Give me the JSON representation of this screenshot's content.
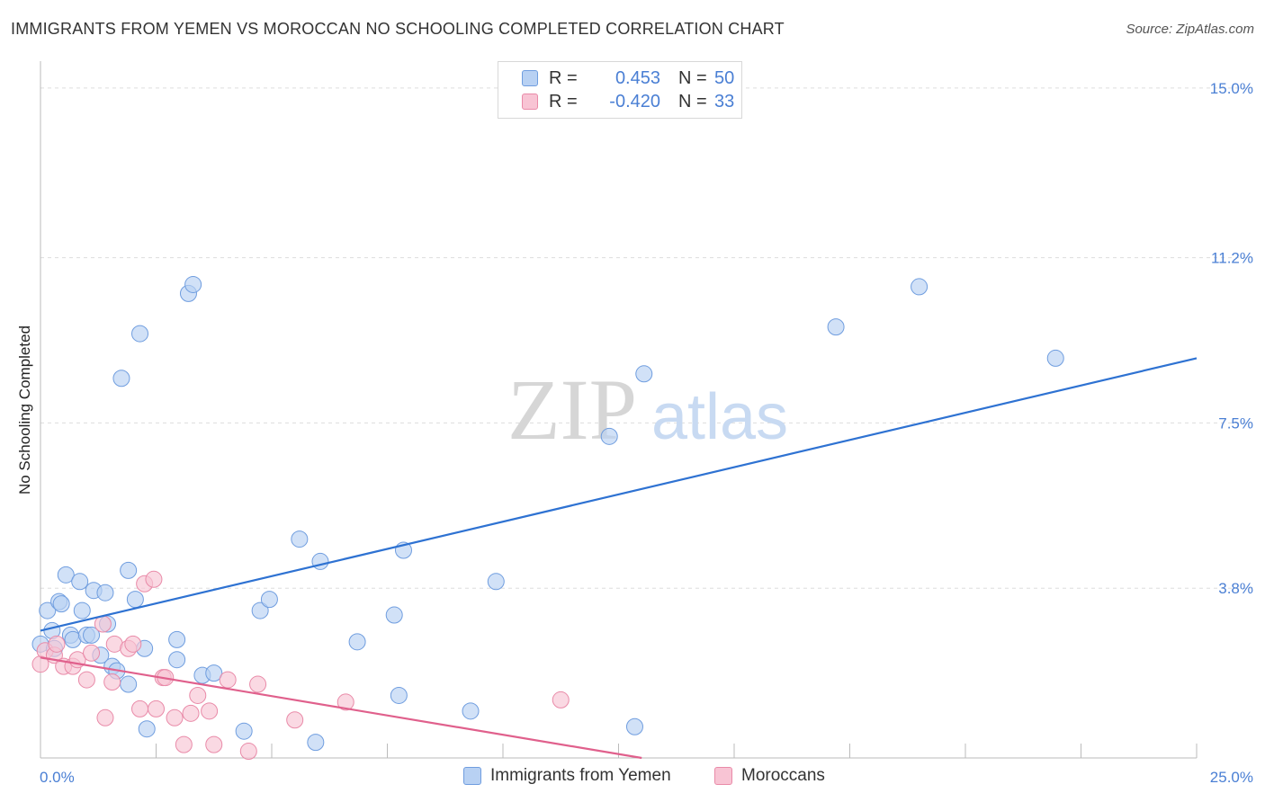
{
  "header": {
    "title": "IMMIGRANTS FROM YEMEN VS MOROCCAN NO SCHOOLING COMPLETED CORRELATION CHART",
    "source": "Source: ZipAtlas.com"
  },
  "watermark": {
    "zip": "ZIP",
    "atlas": "atlas"
  },
  "legend": {
    "rows": [
      {
        "r_label": "R =",
        "r_value": "0.453",
        "n_label": "N =",
        "n_value": "50"
      },
      {
        "r_label": "R =",
        "r_value": "-0.420",
        "n_label": "N =",
        "n_value": "33"
      }
    ]
  },
  "colors": {
    "blue_fill": "#b8d1f3",
    "blue_stroke": "#6f9ddf",
    "blue_line": "#2e72d2",
    "pink_fill": "#f8c4d4",
    "pink_stroke": "#e98aa8",
    "pink_line": "#e0608c",
    "tick_text": "#4a7fd4",
    "grid": "#dddddd"
  },
  "chart_data": {
    "type": "scatter",
    "title": "IMMIGRANTS FROM YEMEN VS MOROCCAN NO SCHOOLING COMPLETED CORRELATION CHART",
    "xlabel": "",
    "ylabel": "No Schooling Completed",
    "xlim": [
      0,
      25
    ],
    "ylim": [
      0,
      15.4
    ],
    "x_tick_labels": [
      "0.0%",
      "25.0%"
    ],
    "y_ticks": [
      3.8,
      7.5,
      11.2,
      15.0
    ],
    "y_tick_labels": [
      "3.8%",
      "7.5%",
      "11.2%",
      "15.0%"
    ],
    "grid": true,
    "legend_position": "bottom",
    "series": [
      {
        "name": "Immigrants from Yemen",
        "color": "#6f9ddf",
        "points": [
          [
            0.0,
            2.55
          ],
          [
            0.15,
            3.3
          ],
          [
            0.25,
            2.85
          ],
          [
            0.3,
            2.45
          ],
          [
            0.4,
            3.5
          ],
          [
            0.45,
            3.45
          ],
          [
            0.55,
            4.1
          ],
          [
            0.65,
            2.75
          ],
          [
            0.7,
            2.65
          ],
          [
            0.85,
            3.95
          ],
          [
            0.9,
            3.3
          ],
          [
            1.0,
            2.75
          ],
          [
            1.1,
            2.75
          ],
          [
            1.15,
            3.75
          ],
          [
            1.3,
            2.3
          ],
          [
            1.4,
            3.7
          ],
          [
            1.45,
            3.0
          ],
          [
            1.55,
            2.05
          ],
          [
            1.65,
            1.95
          ],
          [
            1.75,
            8.5
          ],
          [
            1.9,
            1.65
          ],
          [
            1.9,
            4.2
          ],
          [
            2.05,
            3.55
          ],
          [
            2.15,
            9.5
          ],
          [
            2.25,
            2.45
          ],
          [
            2.3,
            0.65
          ],
          [
            2.95,
            2.65
          ],
          [
            2.95,
            2.2
          ],
          [
            3.2,
            10.4
          ],
          [
            3.3,
            10.6
          ],
          [
            3.5,
            1.85
          ],
          [
            3.75,
            1.9
          ],
          [
            4.4,
            0.6
          ],
          [
            4.75,
            3.3
          ],
          [
            4.95,
            3.55
          ],
          [
            5.6,
            4.9
          ],
          [
            5.95,
            0.35
          ],
          [
            6.05,
            4.4
          ],
          [
            6.85,
            2.6
          ],
          [
            7.65,
            3.2
          ],
          [
            7.75,
            1.4
          ],
          [
            7.85,
            4.65
          ],
          [
            9.3,
            1.05
          ],
          [
            9.85,
            3.95
          ],
          [
            12.3,
            7.2
          ],
          [
            12.85,
            0.7
          ],
          [
            13.05,
            8.6
          ],
          [
            17.2,
            9.65
          ],
          [
            19.0,
            10.55
          ],
          [
            21.95,
            8.95
          ]
        ],
        "trend": {
          "x": [
            0,
            25
          ],
          "y": [
            2.85,
            8.95
          ]
        }
      },
      {
        "name": "Moroccans",
        "color": "#e98aa8",
        "points": [
          [
            0.0,
            2.1
          ],
          [
            0.1,
            2.4
          ],
          [
            0.3,
            2.3
          ],
          [
            0.35,
            2.55
          ],
          [
            0.5,
            2.05
          ],
          [
            0.7,
            2.05
          ],
          [
            0.8,
            2.2
          ],
          [
            1.0,
            1.75
          ],
          [
            1.1,
            2.35
          ],
          [
            1.35,
            3.0
          ],
          [
            1.4,
            0.9
          ],
          [
            1.55,
            1.7
          ],
          [
            1.6,
            2.55
          ],
          [
            1.9,
            2.45
          ],
          [
            2.0,
            2.55
          ],
          [
            2.15,
            1.1
          ],
          [
            2.25,
            3.9
          ],
          [
            2.45,
            4.0
          ],
          [
            2.5,
            1.1
          ],
          [
            2.65,
            1.8
          ],
          [
            2.7,
            1.8
          ],
          [
            2.9,
            0.9
          ],
          [
            3.1,
            0.3
          ],
          [
            3.25,
            1.0
          ],
          [
            3.4,
            1.4
          ],
          [
            3.65,
            1.05
          ],
          [
            3.75,
            0.3
          ],
          [
            4.05,
            1.75
          ],
          [
            4.5,
            0.15
          ],
          [
            4.7,
            1.65
          ],
          [
            5.5,
            0.85
          ],
          [
            6.6,
            1.25
          ],
          [
            11.25,
            1.3
          ]
        ],
        "trend": {
          "x": [
            0,
            13.0
          ],
          "y": [
            2.25,
            0.0
          ]
        }
      }
    ]
  },
  "bottom_legend": {
    "items": [
      {
        "label": "Immigrants from Yemen"
      },
      {
        "label": "Moroccans"
      }
    ]
  }
}
